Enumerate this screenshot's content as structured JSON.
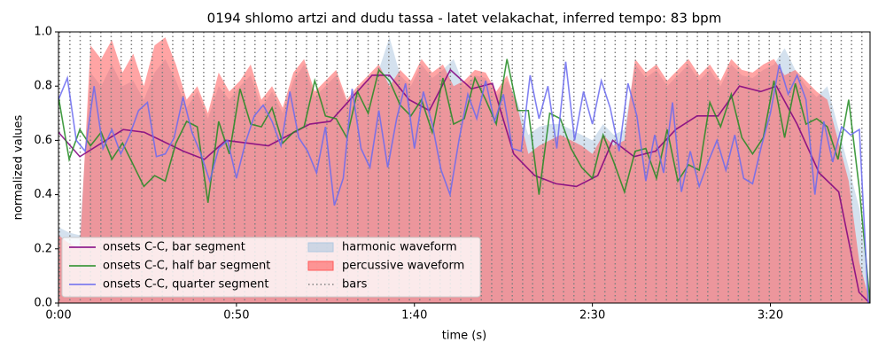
{
  "chart_data": {
    "type": "line",
    "title": "0194 shlomo artzi and dudu tassa - latet velakachat, inferred tempo: 83 bpm",
    "x_label": "time (s)",
    "y_label": "normalized values",
    "xlim": [
      0,
      228
    ],
    "ylim": [
      0,
      1
    ],
    "xticks": [
      {
        "value": 0,
        "label": "0:00"
      },
      {
        "value": 50,
        "label": "0:50"
      },
      {
        "value": 100,
        "label": "1:40"
      },
      {
        "value": 150,
        "label": "2:30"
      },
      {
        "value": 200,
        "label": "3:20"
      }
    ],
    "yticks": [
      {
        "value": 0,
        "label": "0.0"
      },
      0.2,
      0.4,
      0.6,
      0.8,
      {
        "value": 1,
        "label": "1.0"
      }
    ],
    "legend": "lower left",
    "series": [
      {
        "name": "onsets C-C, bar segment",
        "kind": "line",
        "color": "#800080",
        "x": [
          0,
          6.0,
          18.2,
          24.1,
          35.1,
          41.0,
          47.0,
          53.0,
          59.0,
          70.6,
          76.4,
          88.1,
          93.0,
          98.5,
          104.2,
          110.1,
          116.0,
          121.9,
          127.9,
          133.8,
          139.8,
          145.5,
          151.5,
          155.7,
          161.7,
          167.7,
          173.4,
          179.4,
          185.3,
          191.3,
          197.3,
          201.7,
          207.5,
          213.7,
          219.2,
          224.9,
          227.9
        ],
        "values": [
          0.63,
          0.54,
          0.64,
          0.63,
          0.56,
          0.53,
          0.6,
          0.59,
          0.58,
          0.66,
          0.67,
          0.84,
          0.84,
          0.75,
          0.71,
          0.86,
          0.79,
          0.81,
          0.55,
          0.47,
          0.44,
          0.43,
          0.47,
          0.6,
          0.54,
          0.56,
          0.64,
          0.69,
          0.69,
          0.8,
          0.78,
          0.8,
          0.66,
          0.48,
          0.41,
          0.04,
          0
        ]
      },
      {
        "name": "onsets C-C, half bar segment",
        "kind": "line",
        "color": "#228b22",
        "x": [
          0,
          3,
          6,
          9,
          12,
          15,
          18,
          21,
          24,
          27,
          30,
          33,
          36,
          39,
          42,
          45,
          48,
          51,
          54,
          57,
          60,
          63,
          66,
          69,
          72,
          75,
          78,
          81,
          84,
          87,
          90,
          93,
          96,
          99,
          102,
          105,
          108,
          111,
          114,
          117,
          120,
          123,
          126,
          129,
          132,
          135,
          138,
          141,
          144,
          147,
          150,
          153,
          156,
          159,
          162,
          165,
          168,
          171,
          174,
          177,
          180,
          183,
          186,
          189,
          192,
          195,
          198,
          201,
          204,
          207,
          210,
          213,
          216,
          219,
          222,
          225,
          228
        ],
        "values": [
          0.76,
          0.53,
          0.64,
          0.58,
          0.63,
          0.53,
          0.59,
          0.51,
          0.43,
          0.47,
          0.45,
          0.59,
          0.67,
          0.65,
          0.37,
          0.67,
          0.55,
          0.79,
          0.66,
          0.65,
          0.72,
          0.59,
          0.63,
          0.65,
          0.82,
          0.69,
          0.68,
          0.61,
          0.78,
          0.7,
          0.86,
          0.82,
          0.73,
          0.69,
          0.75,
          0.63,
          0.83,
          0.66,
          0.68,
          0.83,
          0.75,
          0.66,
          0.9,
          0.71,
          0.71,
          0.4,
          0.7,
          0.68,
          0.57,
          0.5,
          0.46,
          0.62,
          0.52,
          0.41,
          0.56,
          0.57,
          0.46,
          0.64,
          0.45,
          0.51,
          0.49,
          0.74,
          0.65,
          0.77,
          0.61,
          0.55,
          0.61,
          0.82,
          0.61,
          0.81,
          0.66,
          0.68,
          0.65,
          0.53,
          0.75,
          0.42,
          0
        ]
      },
      {
        "name": "onsets C-C, quarter segment",
        "kind": "line",
        "color": "#6b6bf0",
        "x": [
          0,
          2.5,
          5,
          7.5,
          10,
          12.5,
          15,
          17.5,
          20,
          22.5,
          25,
          27.5,
          30,
          32.5,
          35,
          37.5,
          40,
          42.5,
          45,
          47.5,
          50,
          52.5,
          55,
          57.5,
          60,
          62.5,
          65,
          67.5,
          70,
          72.5,
          75,
          77.5,
          80,
          82.5,
          85,
          87.5,
          90,
          92.5,
          95,
          97.5,
          100,
          102.5,
          105,
          107.5,
          110,
          112.5,
          115,
          117.5,
          120,
          122.5,
          125,
          127.5,
          130,
          132.5,
          135,
          137.5,
          140,
          142.5,
          145,
          147.5,
          150,
          152.5,
          155,
          157.5,
          160,
          162.5,
          165,
          167.5,
          170,
          172.5,
          175,
          177.5,
          180,
          182.5,
          185,
          187.5,
          190,
          192.5,
          195,
          197.5,
          200,
          202.5,
          205,
          207.5,
          210,
          212.5,
          215,
          217.5,
          220,
          222.5,
          225,
          227.5
        ],
        "values": [
          0.75,
          0.83,
          0.6,
          0.56,
          0.8,
          0.57,
          0.64,
          0.55,
          0.62,
          0.71,
          0.74,
          0.54,
          0.55,
          0.61,
          0.76,
          0.63,
          0.55,
          0.45,
          0.57,
          0.6,
          0.46,
          0.59,
          0.69,
          0.73,
          0.67,
          0.58,
          0.78,
          0.61,
          0.56,
          0.48,
          0.65,
          0.36,
          0.46,
          0.79,
          0.57,
          0.5,
          0.71,
          0.5,
          0.68,
          0.81,
          0.57,
          0.78,
          0.66,
          0.49,
          0.4,
          0.6,
          0.77,
          0.68,
          0.82,
          0.67,
          0.77,
          0.57,
          0.56,
          0.84,
          0.68,
          0.8,
          0.57,
          0.89,
          0.6,
          0.78,
          0.66,
          0.82,
          0.72,
          0.56,
          0.81,
          0.69,
          0.45,
          0.62,
          0.48,
          0.74,
          0.41,
          0.56,
          0.43,
          0.52,
          0.6,
          0.49,
          0.62,
          0.46,
          0.44,
          0.58,
          0.7,
          0.88,
          0.77,
          0.84,
          0.75,
          0.4,
          0.67,
          0.52,
          0.65,
          0.62,
          0.64,
          0
        ]
      },
      {
        "name": "harmonic waveform",
        "kind": "area",
        "color": "#b0c8e0",
        "x": [
          0,
          3,
          6,
          9,
          12,
          15,
          18,
          21,
          24,
          27,
          30,
          33,
          36,
          39,
          42,
          45,
          48,
          51,
          54,
          57,
          60,
          63,
          66,
          69,
          72,
          75,
          78,
          81,
          84,
          87,
          90,
          93,
          96,
          99,
          102,
          105,
          108,
          111,
          114,
          117,
          120,
          123,
          126,
          129,
          132,
          135,
          138,
          141,
          144,
          147,
          150,
          153,
          156,
          159,
          162,
          165,
          168,
          171,
          174,
          177,
          180,
          183,
          186,
          189,
          192,
          195,
          198,
          201,
          204,
          207,
          210,
          213,
          216,
          219,
          222,
          225,
          228
        ],
        "values": [
          0.28,
          0.26,
          0.25,
          0.85,
          0.8,
          0.88,
          0.8,
          0.82,
          0.75,
          0.85,
          0.9,
          0.82,
          0.72,
          0.78,
          0.68,
          0.8,
          0.75,
          0.8,
          0.84,
          0.72,
          0.78,
          0.7,
          0.82,
          0.88,
          0.76,
          0.8,
          0.84,
          0.74,
          0.78,
          0.82,
          0.86,
          0.98,
          0.84,
          0.8,
          0.88,
          0.83,
          0.86,
          0.9,
          0.8,
          0.84,
          0.83,
          0.76,
          0.82,
          0.74,
          0.62,
          0.65,
          0.66,
          0.66,
          0.64,
          0.62,
          0.6,
          0.66,
          0.62,
          0.64,
          0.88,
          0.83,
          0.86,
          0.8,
          0.84,
          0.88,
          0.82,
          0.86,
          0.8,
          0.88,
          0.84,
          0.83,
          0.86,
          0.88,
          0.94,
          0.86,
          0.8,
          0.76,
          0.8,
          0.65,
          0.5,
          0.35,
          0
        ]
      },
      {
        "name": "percussive waveform",
        "kind": "area",
        "color": "#ff5a5a",
        "x": [
          0,
          3,
          6,
          9,
          12,
          15,
          18,
          21,
          24,
          27,
          30,
          33,
          36,
          39,
          42,
          45,
          48,
          51,
          54,
          57,
          60,
          63,
          66,
          69,
          72,
          75,
          78,
          81,
          84,
          87,
          90,
          93,
          96,
          99,
          102,
          105,
          108,
          111,
          114,
          117,
          120,
          123,
          126,
          129,
          132,
          135,
          138,
          141,
          144,
          147,
          150,
          153,
          156,
          159,
          162,
          165,
          168,
          171,
          174,
          177,
          180,
          183,
          186,
          189,
          192,
          195,
          198,
          201,
          204,
          207,
          210,
          213,
          216,
          219,
          222,
          225,
          228
        ],
        "values": [
          0.25,
          0.22,
          0.2,
          0.95,
          0.9,
          0.97,
          0.85,
          0.92,
          0.8,
          0.95,
          0.98,
          0.88,
          0.75,
          0.8,
          0.7,
          0.85,
          0.78,
          0.82,
          0.88,
          0.75,
          0.8,
          0.72,
          0.85,
          0.9,
          0.78,
          0.82,
          0.86,
          0.75,
          0.8,
          0.84,
          0.88,
          0.8,
          0.86,
          0.82,
          0.9,
          0.85,
          0.88,
          0.8,
          0.82,
          0.86,
          0.85,
          0.78,
          0.84,
          0.72,
          0.55,
          0.58,
          0.6,
          0.62,
          0.6,
          0.58,
          0.55,
          0.62,
          0.58,
          0.6,
          0.9,
          0.85,
          0.88,
          0.82,
          0.86,
          0.9,
          0.84,
          0.88,
          0.82,
          0.9,
          0.86,
          0.85,
          0.88,
          0.9,
          0.84,
          0.86,
          0.82,
          0.78,
          0.75,
          0.6,
          0.45,
          0.15,
          0
        ]
      },
      {
        "name": "bars",
        "kind": "vlines",
        "color": "#808080",
        "x": [
          0.3,
          3.2,
          6.1,
          9.0,
          11.9,
          14.8,
          17.6,
          20.5,
          23.4,
          26.3,
          29.2,
          32.1,
          35.0,
          37.9,
          40.8,
          43.7,
          46.5,
          49.4,
          52.3,
          55.2,
          58.1,
          61.0,
          63.9,
          66.8,
          69.7,
          72.6,
          75.4,
          78.3,
          81.2,
          84.1,
          87.0,
          89.9,
          92.8,
          95.7,
          98.6,
          101.5,
          104.3,
          107.2,
          110.1,
          113.0,
          115.9,
          118.8,
          121.7,
          124.6,
          127.5,
          130.4,
          133.2,
          136.1,
          139.0,
          141.9,
          144.8,
          147.7,
          150.6,
          153.5,
          156.4,
          159.3,
          162.1,
          165.0,
          167.9,
          170.8,
          173.7,
          176.6,
          179.5,
          182.4,
          185.3,
          188.2,
          191.0,
          193.9,
          196.8,
          199.7,
          202.6,
          205.5,
          208.4,
          211.3,
          214.2,
          217.1,
          219.9,
          222.8,
          225.7
        ]
      }
    ]
  }
}
